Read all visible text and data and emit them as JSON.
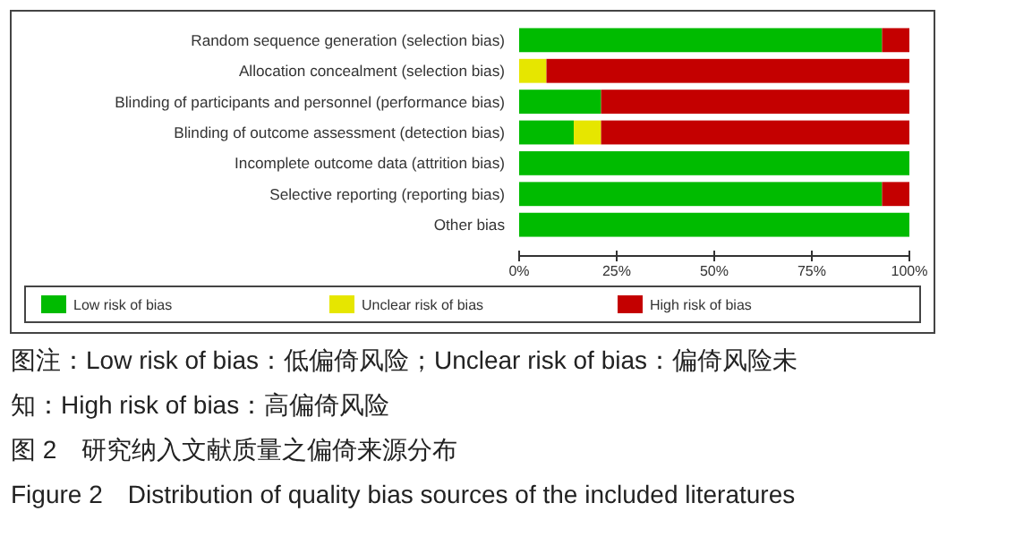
{
  "chart_data": {
    "type": "bar",
    "orientation": "horizontal",
    "stacked": true,
    "categories": [
      "Random sequence generation (selection bias)",
      "Allocation concealment (selection bias)",
      "Blinding of participants and personnel (performance bias)",
      "Blinding of outcome assessment (detection bias)",
      "Incomplete outcome data (attrition bias)",
      "Selective reporting (reporting bias)",
      "Other bias"
    ],
    "series": [
      {
        "name": "Low risk of bias",
        "color": "#00bb00",
        "values": [
          93,
          0,
          21,
          14,
          100,
          93,
          100
        ]
      },
      {
        "name": "Unclear risk of bias",
        "color": "#e6e600",
        "values": [
          0,
          7,
          0,
          7,
          0,
          0,
          0
        ]
      },
      {
        "name": "High risk of bias",
        "color": "#c40000",
        "values": [
          7,
          93,
          79,
          79,
          0,
          7,
          0
        ]
      }
    ],
    "xlim": [
      0,
      100
    ],
    "xticks": [
      {
        "value": 0,
        "label": "0%"
      },
      {
        "value": 25,
        "label": "25%"
      },
      {
        "value": 50,
        "label": "50%"
      },
      {
        "value": 75,
        "label": "75%"
      },
      {
        "value": 100,
        "label": "100%"
      }
    ],
    "grid": false,
    "legend": "bottom",
    "annotations": [
      "图注：Low risk of bias：低偏倚风险；Unclear risk of bias：偏倚风险未",
      "知：High risk of bias：高偏倚风险",
      "图 2　研究纳入文献质量之偏倚来源分布",
      "Figure 2　Distribution of quality bias sources of the included literatures"
    ]
  }
}
